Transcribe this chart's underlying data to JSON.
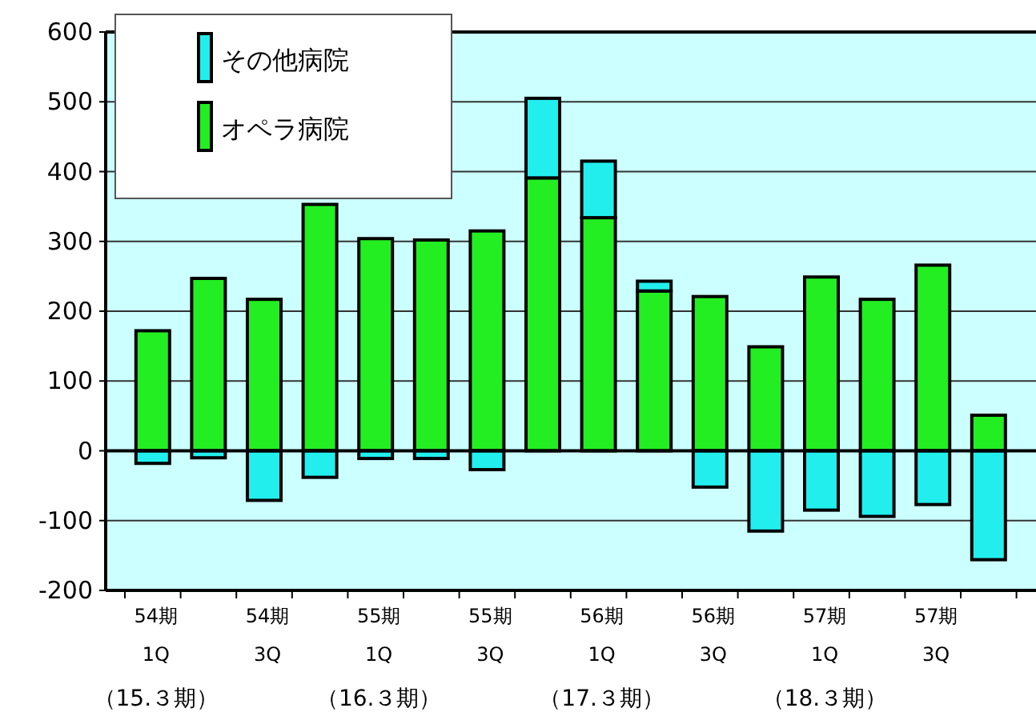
{
  "chart_data": {
    "type": "bar",
    "stacked": true,
    "categories": [
      "54期\n1Q\n（15.３期）",
      null,
      "54期\n3Q",
      null,
      "55期\n1Q\n（16.３期）",
      null,
      "55期\n3Q",
      null,
      "56期\n1Q\n（17.３期）",
      null,
      "56期\n3Q",
      null,
      "57期\n1Q\n（18.３期）",
      null,
      "57期\n3Q",
      null
    ],
    "series": [
      {
        "name": "オペラ病院",
        "color": "#22ee22",
        "values": [
          172,
          247,
          217,
          353,
          304,
          302,
          315,
          391,
          334,
          229,
          221,
          149,
          249,
          217,
          266,
          51
        ]
      },
      {
        "name": "その他病院",
        "color": "#22eeee",
        "values": [
          -18,
          -10,
          -71,
          -38,
          -11,
          -11,
          -27,
          114,
          81,
          14,
          -52,
          -115,
          -85,
          -94,
          -77,
          -156
        ]
      }
    ],
    "ylim": [
      -200,
      600
    ],
    "yticks": [
      -200,
      -100,
      0,
      100,
      200,
      300,
      400,
      500,
      600
    ],
    "grid": "y",
    "legend": "top left"
  }
}
